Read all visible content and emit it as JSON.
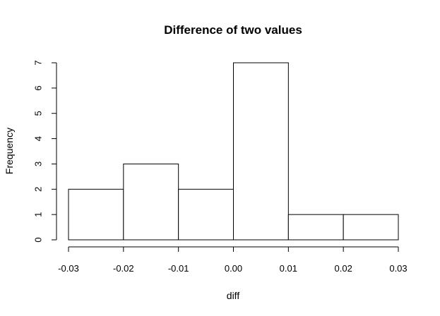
{
  "chart_data": {
    "type": "bar",
    "subtype": "histogram",
    "title": "Difference of two values",
    "xlabel": "diff",
    "ylabel": "Frequency",
    "bins": [
      {
        "start": -0.03,
        "end": -0.02,
        "count": 2
      },
      {
        "start": -0.02,
        "end": -0.01,
        "count": 3
      },
      {
        "start": -0.01,
        "end": 0.0,
        "count": 2
      },
      {
        "start": 0.0,
        "end": 0.01,
        "count": 7
      },
      {
        "start": 0.01,
        "end": 0.02,
        "count": 1
      },
      {
        "start": 0.02,
        "end": 0.03,
        "count": 1
      }
    ],
    "xlim": [
      -0.03,
      0.03
    ],
    "ylim": [
      0,
      7
    ],
    "x_ticks": [
      "-0.03",
      "-0.02",
      "-0.01",
      "0.00",
      "0.01",
      "0.02",
      "0.03"
    ],
    "y_ticks": [
      "0",
      "1",
      "2",
      "3",
      "4",
      "5",
      "6",
      "7"
    ],
    "grid": false,
    "colors": {
      "bar_fill": "#ffffff",
      "bar_stroke": "#000000"
    }
  }
}
